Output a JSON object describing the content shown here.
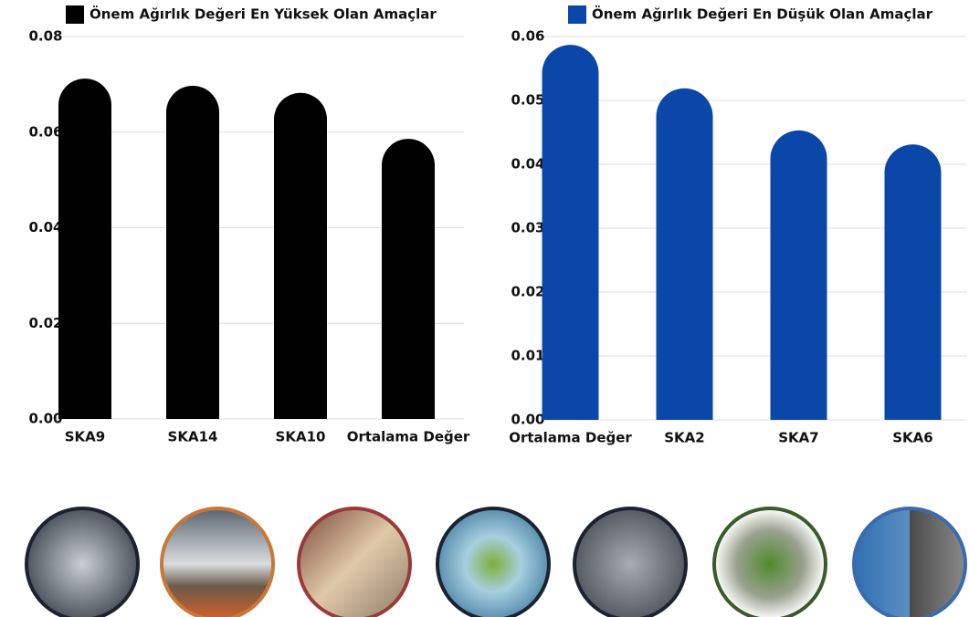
{
  "chart_data": [
    {
      "type": "bar",
      "legend": "Önem Ağırlık Değeri En Yüksek Olan Amaçlar",
      "color": "#000000",
      "categories": [
        "SKA9",
        "SKA14",
        "SKA10",
        "Ortalama Değer"
      ],
      "values": [
        0.0712,
        0.0697,
        0.0682,
        0.0586
      ],
      "ylim": [
        0,
        0.08
      ],
      "yticks": [
        {
          "value": 0,
          "label": "0.00"
        },
        0.02,
        0.04,
        0.06,
        0.08
      ],
      "grid": true
    },
    {
      "type": "bar",
      "legend": "Önem Ağırlık Değeri En Düşük Olan Amaçlar",
      "color": "#0a47a8",
      "categories": [
        "Ortalama Değer",
        "SKA2",
        "SKA7",
        "SKA6"
      ],
      "values": [
        0.0587,
        0.0519,
        0.0453,
        0.0431
      ],
      "ylim": [
        0,
        0.06
      ],
      "yticks": [
        {
          "value": 0,
          "label": "0.00"
        },
        0.01,
        0.02,
        0.03,
        0.04,
        0.05,
        0.06
      ],
      "grid": true
    }
  ]
}
